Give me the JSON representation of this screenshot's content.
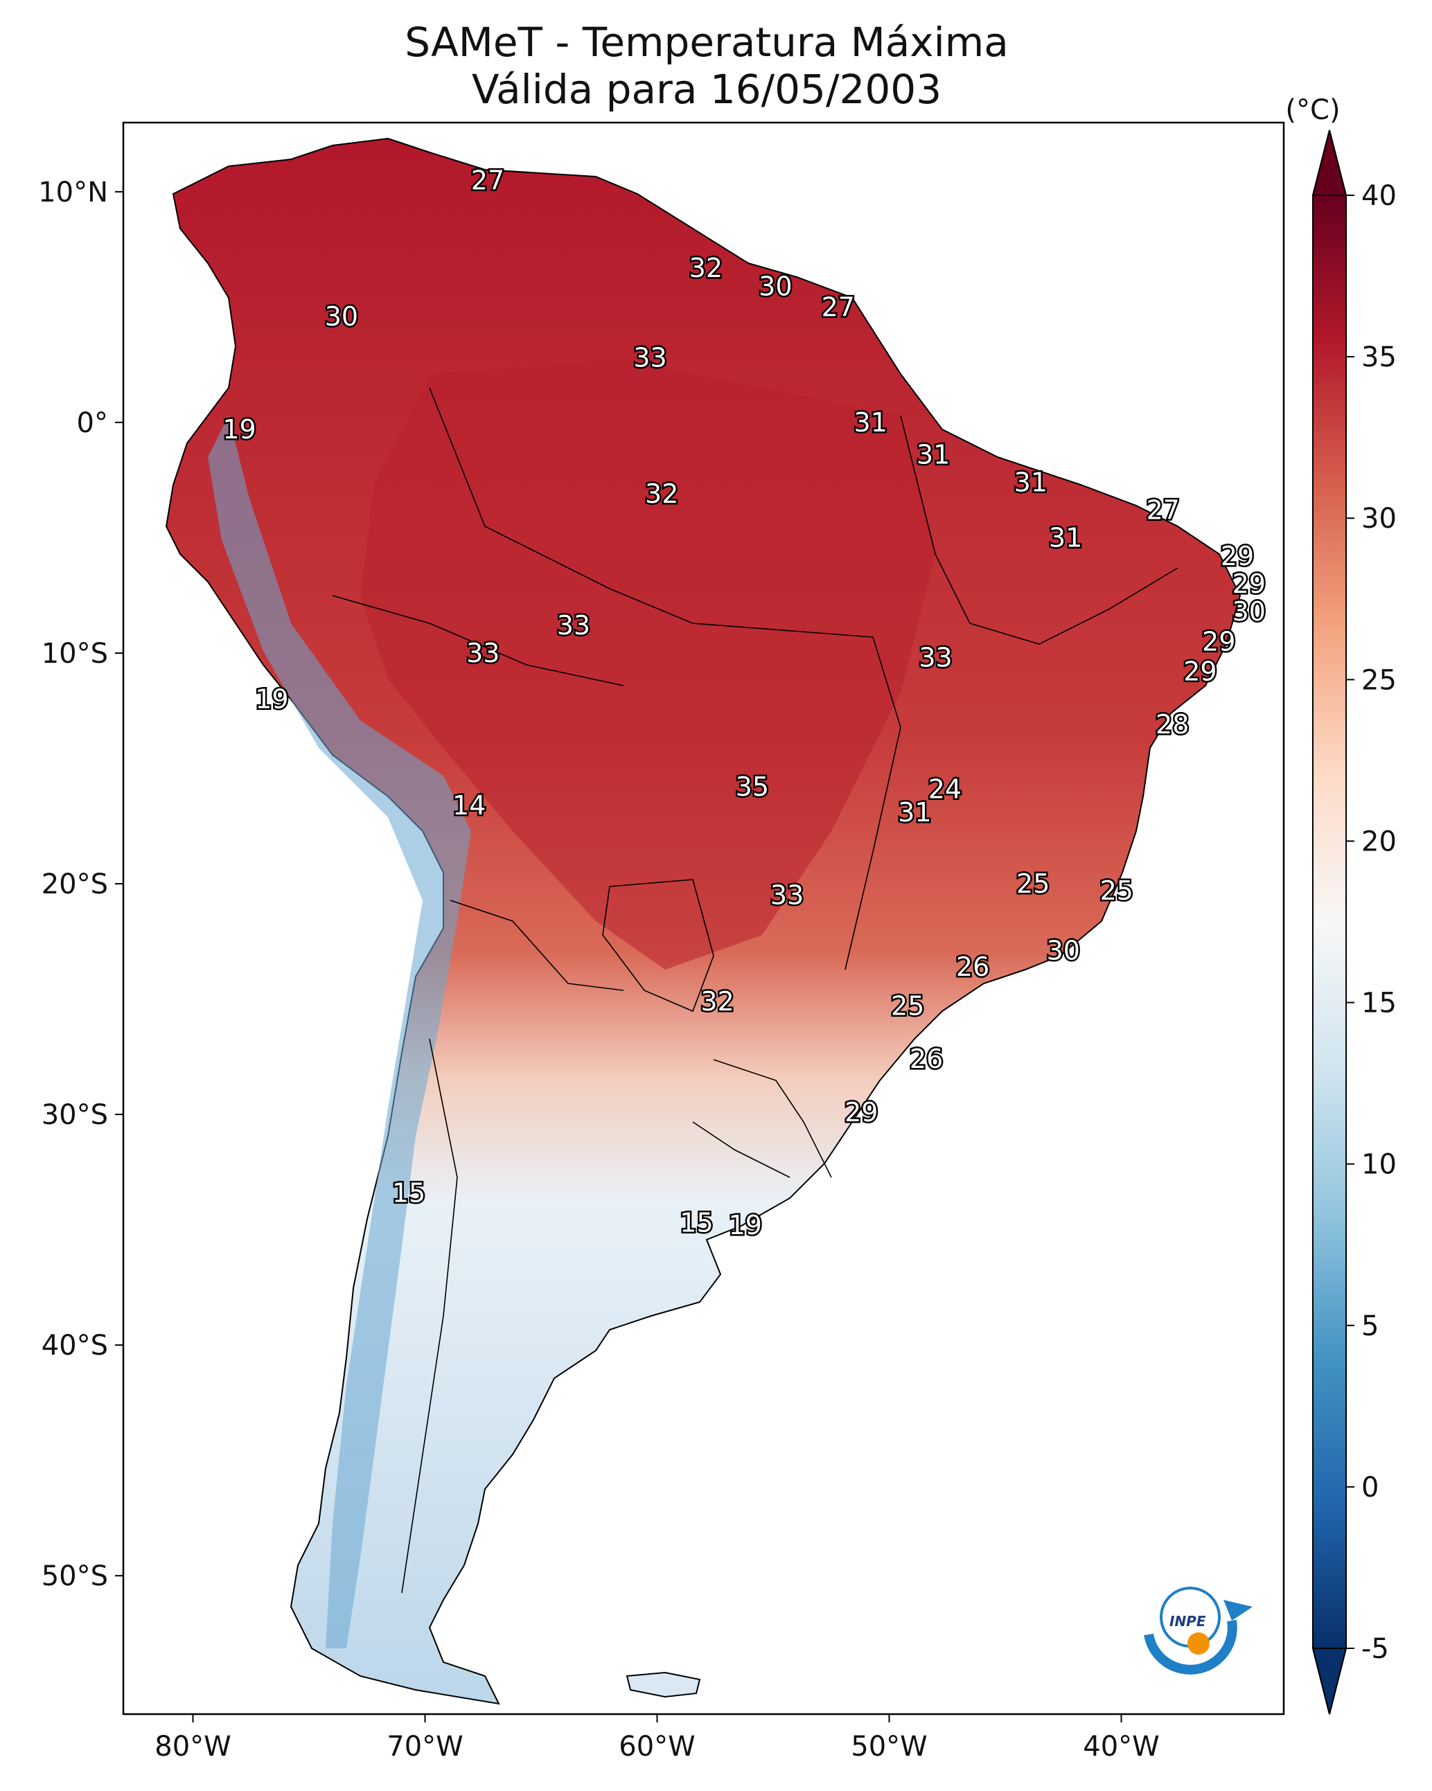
{
  "title": {
    "line1": "SAMeT - Temperatura Máxima",
    "line2": "Válida para 16/05/2003"
  },
  "map": {
    "extent_lon": [
      -83,
      -33
    ],
    "extent_lat": [
      -56,
      13
    ],
    "lon_ticks": [
      -80,
      -70,
      -60,
      -50,
      -40
    ],
    "lon_tick_labels": [
      "80°W",
      "70°W",
      "60°W",
      "50°W",
      "40°W"
    ],
    "lat_ticks": [
      10,
      0,
      -10,
      -20,
      -30,
      -40,
      -50
    ],
    "lat_tick_labels": [
      "10°N",
      "0°",
      "10°S",
      "20°S",
      "30°S",
      "40°S",
      "50°S"
    ]
  },
  "colorbar": {
    "unit_label": "(°C)",
    "range": [
      -5,
      40
    ],
    "ticks": [
      -5,
      0,
      5,
      10,
      15,
      20,
      25,
      30,
      35,
      40
    ],
    "tick_labels": [
      "-5",
      "0",
      "5",
      "10",
      "15",
      "20",
      "25",
      "30",
      "35",
      "40"
    ],
    "colors": [
      "#08306b",
      "#2166ac",
      "#4393c3",
      "#92c5de",
      "#d1e5f0",
      "#f7f7f7",
      "#fddbc7",
      "#f4a582",
      "#d6604d",
      "#b2182b",
      "#67001f"
    ]
  },
  "value_labels": [
    {
      "text": "27",
      "lon": -67.3,
      "lat": 10.5
    },
    {
      "text": "32",
      "lon": -57.9,
      "lat": 6.7
    },
    {
      "text": "30",
      "lon": -54.9,
      "lat": 5.9
    },
    {
      "text": "27",
      "lon": -52.2,
      "lat": 5.0
    },
    {
      "text": "30",
      "lon": -73.6,
      "lat": 4.6
    },
    {
      "text": "33",
      "lon": -60.3,
      "lat": 2.8
    },
    {
      "text": "19",
      "lon": -78.0,
      "lat": -0.3
    },
    {
      "text": "31",
      "lon": -50.8,
      "lat": -0.0
    },
    {
      "text": "31",
      "lon": -48.1,
      "lat": -1.4
    },
    {
      "text": "31",
      "lon": -43.9,
      "lat": -2.6
    },
    {
      "text": "32",
      "lon": -59.8,
      "lat": -3.1
    },
    {
      "text": "27",
      "lon": -38.2,
      "lat": -3.8
    },
    {
      "text": "31",
      "lon": -42.4,
      "lat": -5.0
    },
    {
      "text": "29",
      "lon": -35.0,
      "lat": -5.8
    },
    {
      "text": "29",
      "lon": -34.5,
      "lat": -7.0
    },
    {
      "text": "30",
      "lon": -34.5,
      "lat": -8.2
    },
    {
      "text": "33",
      "lon": -63.6,
      "lat": -8.8
    },
    {
      "text": "33",
      "lon": -67.5,
      "lat": -10.0
    },
    {
      "text": "33",
      "lon": -48.0,
      "lat": -10.2
    },
    {
      "text": "29",
      "lon": -35.8,
      "lat": -9.5
    },
    {
      "text": "29",
      "lon": -36.6,
      "lat": -10.8
    },
    {
      "text": "19",
      "lon": -76.6,
      "lat": -12.0
    },
    {
      "text": "28",
      "lon": -37.8,
      "lat": -13.1
    },
    {
      "text": "35",
      "lon": -55.9,
      "lat": -15.8
    },
    {
      "text": "24",
      "lon": -47.6,
      "lat": -15.9
    },
    {
      "text": "14",
      "lon": -68.1,
      "lat": -16.6
    },
    {
      "text": "31",
      "lon": -48.9,
      "lat": -16.9
    },
    {
      "text": "25",
      "lon": -43.8,
      "lat": -20.0
    },
    {
      "text": "33",
      "lon": -54.4,
      "lat": -20.5
    },
    {
      "text": "25",
      "lon": -40.2,
      "lat": -20.3
    },
    {
      "text": "30",
      "lon": -42.5,
      "lat": -22.9
    },
    {
      "text": "26",
      "lon": -46.4,
      "lat": -23.6
    },
    {
      "text": "32",
      "lon": -57.4,
      "lat": -25.1
    },
    {
      "text": "25",
      "lon": -49.2,
      "lat": -25.3
    },
    {
      "text": "26",
      "lon": -48.4,
      "lat": -27.6
    },
    {
      "text": "29",
      "lon": -51.2,
      "lat": -29.9
    },
    {
      "text": "15",
      "lon": -70.7,
      "lat": -33.4
    },
    {
      "text": "15",
      "lon": -58.3,
      "lat": -34.7
    },
    {
      "text": "19",
      "lon": -56.2,
      "lat": -34.8
    }
  ],
  "logo": {
    "text": "INPE",
    "colors": [
      "#1f7fc7",
      "#f39200"
    ]
  }
}
